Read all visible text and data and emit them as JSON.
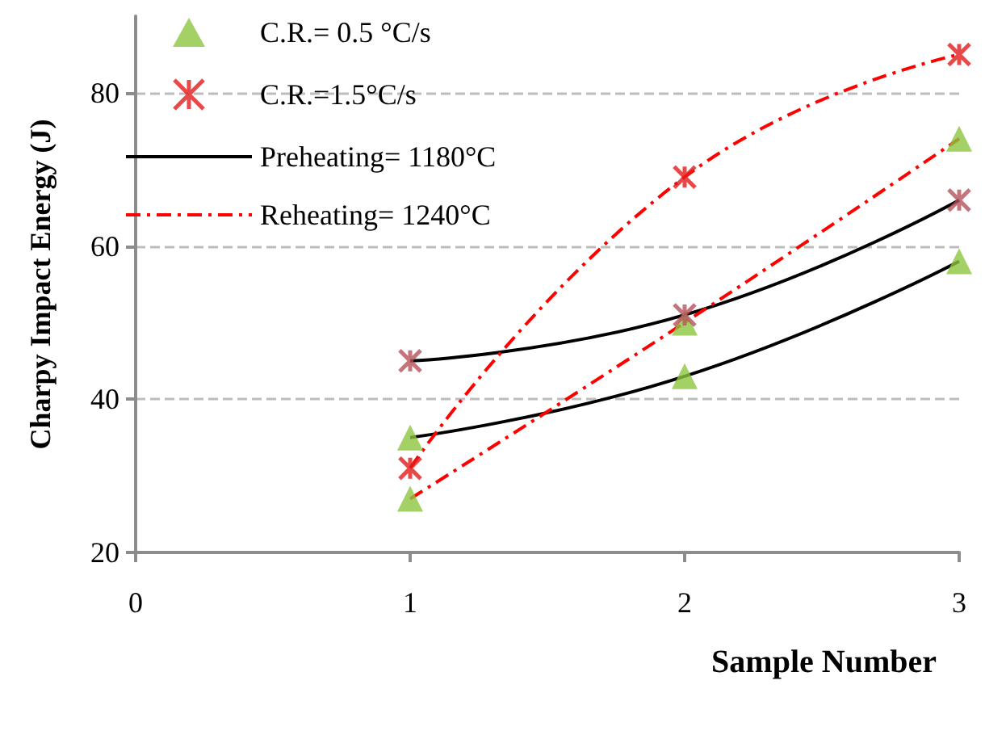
{
  "chart_data": {
    "type": "scatter",
    "xlabel": "Sample Number",
    "ylabel": "Charpy Impact Energy (J)",
    "xlim": [
      0,
      3
    ],
    "xticks": [
      0,
      1,
      2,
      3
    ],
    "ylim": [
      20,
      90
    ],
    "yticks": [
      20,
      40,
      60,
      80
    ],
    "grid": "y",
    "legend": "top left",
    "series": [
      {
        "name": "C.R.= 0.5 °C/s",
        "marker": "triangle",
        "color": "#8cc63e",
        "x": [
          1,
          1,
          2,
          2,
          3,
          3
        ],
        "values": [
          35,
          27,
          50,
          43,
          74,
          58
        ]
      },
      {
        "name": "C.R.=1.5°C/s",
        "marker": "cross",
        "color": "#e31a1c",
        "x": [
          1,
          1,
          2,
          2,
          3,
          3
        ],
        "values": [
          45,
          31,
          51,
          69,
          66,
          85
        ],
        "colors": [
          "#b5525a",
          "#e31a1c",
          "#b5525a",
          "#e31a1c",
          "#b5525a",
          "#e31a1c"
        ]
      },
      {
        "name": "Preheating= 1180°C",
        "type": "line",
        "marker": "none",
        "line_style": "solid",
        "color": "#000000",
        "x": [
          1,
          2,
          3
        ],
        "values": [
          45,
          51,
          66
        ]
      },
      {
        "type": "line",
        "marker": "none",
        "line_style": "solid",
        "color": "#000000",
        "x": [
          1,
          2,
          3
        ],
        "values": [
          35,
          43,
          58
        ]
      },
      {
        "name": "Reheating= 1240°C",
        "type": "line",
        "marker": "none",
        "line_style": "dashdot",
        "color": "#ff0000",
        "x": [
          1,
          2,
          3
        ],
        "values": [
          31,
          69,
          85
        ]
      },
      {
        "type": "line",
        "marker": "none",
        "line_style": "dashdot",
        "color": "#ff0000",
        "x": [
          1,
          2,
          3
        ],
        "values": [
          27,
          50,
          74
        ]
      }
    ]
  }
}
